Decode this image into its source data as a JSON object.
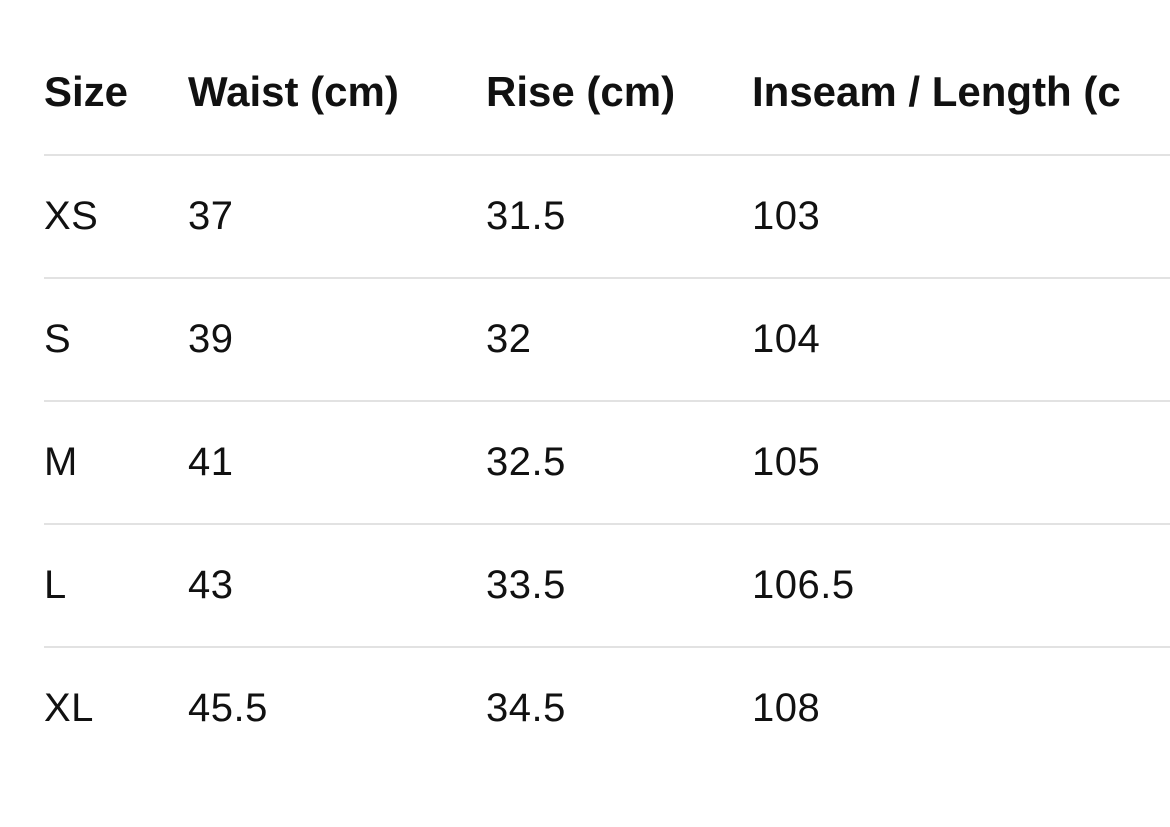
{
  "table": {
    "header": [
      "Size",
      "Waist (cm)",
      "Rise (cm)",
      "Inseam / Length (c"
    ],
    "rows": [
      [
        "XS",
        37,
        31.5,
        103
      ],
      [
        "S",
        39,
        32,
        104
      ],
      [
        "M",
        41,
        32.5,
        105
      ],
      [
        "L",
        43,
        33.5,
        106.5
      ],
      [
        "XL",
        45.5,
        34.5,
        108
      ]
    ]
  }
}
